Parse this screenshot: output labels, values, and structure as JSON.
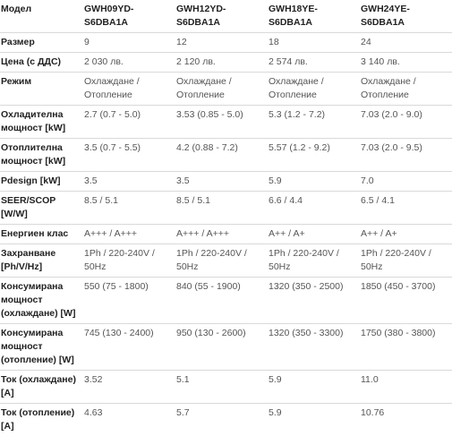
{
  "table": {
    "header": {
      "label": "Модел",
      "models": [
        "GWH09YD-S6DBA1A",
        "GWH12YD-S6DBA1A",
        "GWH18YE-S6DBA1A",
        "GWH24YE-S6DBA1A"
      ]
    },
    "rows": [
      {
        "label": [
          "Размер"
        ],
        "values": [
          [
            "9"
          ],
          [
            "12"
          ],
          [
            "18"
          ],
          [
            "24"
          ]
        ]
      },
      {
        "label": [
          "Цена (с ДДС)"
        ],
        "values": [
          [
            "2 030 лв."
          ],
          [
            "2 120 лв."
          ],
          [
            "2 574 лв."
          ],
          [
            "3 140 лв."
          ]
        ]
      },
      {
        "label": [
          "Режим"
        ],
        "values": [
          [
            "Охлаждане /",
            "Отопление"
          ],
          [
            "Охлаждане /",
            "Отопление"
          ],
          [
            "Охлаждане /",
            "Отопление"
          ],
          [
            "Охлаждане /",
            "Отопление"
          ]
        ]
      },
      {
        "label": [
          "Охладителна",
          "мощност [kW]"
        ],
        "values": [
          [
            "2.7 (0.7 - 5.0)"
          ],
          [
            "3.53 (0.85 - 5.0)"
          ],
          [
            "5.3 (1.2 - 7.2)"
          ],
          [
            "7.03 (2.0 - 9.0)"
          ]
        ]
      },
      {
        "label": [
          "Отоплителна",
          "мощност [kW]"
        ],
        "values": [
          [
            "3.5 (0.7 - 5.5)"
          ],
          [
            "4.2 (0.88 - 7.2)"
          ],
          [
            "5.57 (1.2 - 9.2)"
          ],
          [
            "7.03 (2.0 - 9.5)"
          ]
        ]
      },
      {
        "label": [
          "Pdesign [kW]"
        ],
        "values": [
          [
            "3.5"
          ],
          [
            "3.5"
          ],
          [
            "5.9"
          ],
          [
            "7.0"
          ]
        ]
      },
      {
        "label": [
          "SEER/SCOP [W/W]"
        ],
        "values": [
          [
            "8.5 / 5.1"
          ],
          [
            "8.5 / 5.1"
          ],
          [
            "6.6 / 4.4"
          ],
          [
            "6.5 / 4.1"
          ]
        ]
      },
      {
        "label": [
          "Енергиен клас"
        ],
        "values": [
          [
            "A+++ / A+++"
          ],
          [
            "A+++ / A+++"
          ],
          [
            "A++ / A+"
          ],
          [
            "A++ / A+"
          ]
        ]
      },
      {
        "label": [
          "Захранване",
          "[Ph/V/Hz]"
        ],
        "values": [
          [
            "1Ph / 220-240V /",
            "50Hz"
          ],
          [
            "1Ph / 220-240V /",
            "50Hz"
          ],
          [
            "1Ph / 220-240V /",
            "50Hz"
          ],
          [
            "1Ph / 220-240V /",
            "50Hz"
          ]
        ]
      },
      {
        "label": [
          "Консумирана",
          "мощност",
          "(охлаждане) [W]"
        ],
        "values": [
          [
            "550 (75 - 1800)"
          ],
          [
            "840 (55 - 1900)"
          ],
          [
            "1320 (350 - 2500)"
          ],
          [
            "1850 (450 - 3700)"
          ]
        ]
      },
      {
        "label": [
          "Консумирана",
          "мощност",
          "(отопление) [W]"
        ],
        "values": [
          [
            "745 (130 - 2400)"
          ],
          [
            "950 (130 - 2600)"
          ],
          [
            "1320 (350 - 3300)"
          ],
          [
            "1750 (380 - 3800)"
          ]
        ]
      },
      {
        "label": [
          "Ток (охлаждане) [A]"
        ],
        "values": [
          [
            "3.52"
          ],
          [
            "5.1"
          ],
          [
            "5.9"
          ],
          [
            "11.0"
          ]
        ]
      },
      {
        "label": [
          "Ток (отопление) [A]"
        ],
        "values": [
          [
            "4.63"
          ],
          [
            "5.7"
          ],
          [
            "5.9"
          ],
          [
            "10.76"
          ]
        ]
      }
    ]
  }
}
